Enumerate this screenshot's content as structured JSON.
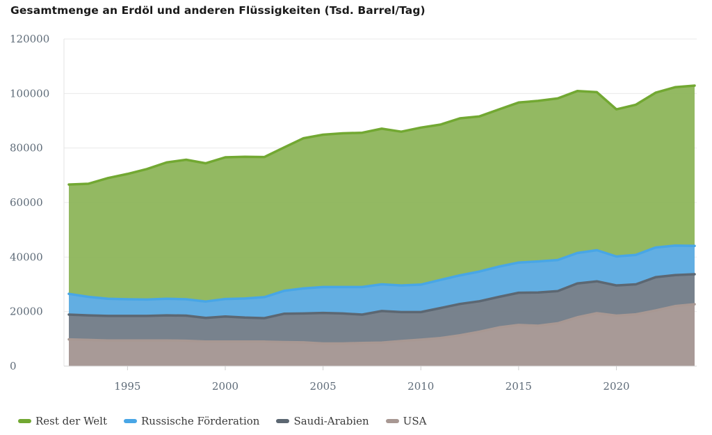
{
  "chart_data": {
    "type": "area",
    "stacked": true,
    "title": "Gesamtmenge an Erdöl und anderen Flüssigkeiten (Tsd. Barrel/Tag)",
    "xlabel": "",
    "ylabel": "",
    "xlim": [
      1992,
      2024
    ],
    "ylim": [
      0,
      120000
    ],
    "x_ticks": [
      "1995",
      "2000",
      "2005",
      "2010",
      "2015",
      "2020"
    ],
    "y_ticks": [
      "0",
      "20000",
      "40000",
      "60000",
      "80000",
      "100000",
      "120000"
    ],
    "grid": "horizontal",
    "legend_position": "bottom-left",
    "x": [
      1992,
      1993,
      1994,
      1995,
      1996,
      1997,
      1998,
      1999,
      2000,
      2001,
      2002,
      2003,
      2004,
      2005,
      2006,
      2007,
      2008,
      2009,
      2010,
      2011,
      2012,
      2013,
      2014,
      2015,
      2016,
      2017,
      2018,
      2019,
      2020,
      2021,
      2022,
      2023,
      2024
    ],
    "series": [
      {
        "name": "USA",
        "color": "#a39591",
        "line_color": "#a89893",
        "cumulative_values": [
          9800,
          9600,
          9400,
          9400,
          9400,
          9400,
          9300,
          9000,
          9000,
          9000,
          9000,
          8800,
          8700,
          8300,
          8300,
          8500,
          8600,
          9200,
          9700,
          10300,
          11300,
          12600,
          14200,
          15100,
          14800,
          15700,
          17900,
          19400,
          18500,
          19000,
          20400,
          22000,
          22700
        ]
      },
      {
        "name": "Saudi-Arabien",
        "color": "#717b87",
        "line_color": "#5c6772",
        "cumulative_values": [
          18900,
          18600,
          18400,
          18400,
          18400,
          18600,
          18500,
          17700,
          18200,
          17800,
          17600,
          19200,
          19300,
          19500,
          19300,
          18900,
          20200,
          19800,
          19800,
          21300,
          22800,
          23800,
          25400,
          26900,
          27000,
          27500,
          30300,
          31100,
          29600,
          30000,
          32600,
          33400,
          33700
        ]
      },
      {
        "name": "Russische Förderation",
        "color": "#5aaae0",
        "line_color": "#48a6e6",
        "cumulative_values": [
          26500,
          25400,
          24700,
          24500,
          24400,
          24700,
          24500,
          23700,
          24600,
          24800,
          25300,
          27600,
          28500,
          29000,
          29000,
          29000,
          30000,
          29600,
          29900,
          31600,
          33300,
          34700,
          36500,
          38000,
          38400,
          38900,
          41500,
          42500,
          40200,
          40800,
          43500,
          44200,
          44100
        ]
      },
      {
        "name": "Rest der Welt",
        "color": "#8db55a",
        "line_color": "#72a832",
        "cumulative_values": [
          66600,
          66900,
          69000,
          70500,
          72300,
          74700,
          75700,
          74400,
          76600,
          76800,
          76700,
          80200,
          83600,
          84900,
          85400,
          85600,
          87100,
          86000,
          87500,
          88600,
          90900,
          91600,
          94200,
          96700,
          97300,
          98200,
          100900,
          100500,
          94200,
          95900,
          100300,
          102300,
          102900
        ]
      }
    ]
  }
}
